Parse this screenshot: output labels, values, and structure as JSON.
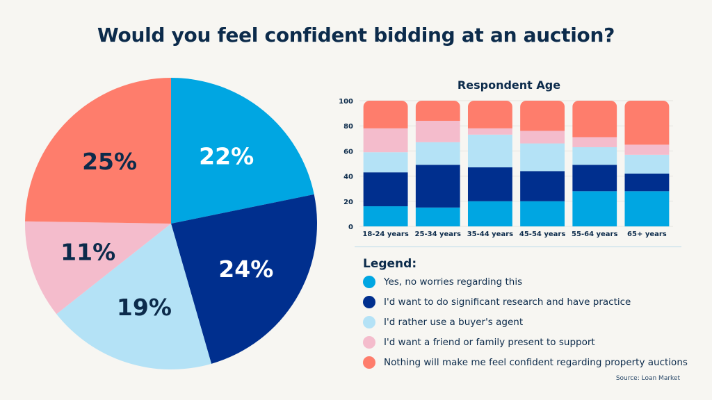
{
  "title": "Would you feel confident bidding at an auction?",
  "colors": {
    "yes": "#00a6e2",
    "research": "#002f8e",
    "agent": "#b4e2f6",
    "friend": "#f4bccc",
    "nothing": "#fe7d6c",
    "text_dark": "#0c2b4b"
  },
  "legend": {
    "title": "Legend:",
    "items": [
      {
        "key": "yes",
        "label": "Yes, no worries regarding this"
      },
      {
        "key": "research",
        "label": "I'd want to do significant research and have practice"
      },
      {
        "key": "agent",
        "label": "I'd rather use a buyer's agent"
      },
      {
        "key": "friend",
        "label": "I'd want a friend or family present to support"
      },
      {
        "key": "nothing",
        "label": "Nothing will make me feel confident regarding property auctions"
      }
    ]
  },
  "source": "Source: Loan Market",
  "chart_data": [
    {
      "type": "pie",
      "title": "Would you feel confident bidding at an auction?",
      "start": "top, clockwise",
      "slices": [
        {
          "key": "yes",
          "label": "Yes, no worries regarding this",
          "value": 22,
          "text": "22%",
          "label_color": "#ffffff"
        },
        {
          "key": "research",
          "label": "I'd want to do significant research and have practice",
          "value": 24,
          "text": "24%",
          "label_color": "#ffffff"
        },
        {
          "key": "agent",
          "label": "I'd rather use a buyer's agent",
          "value": 19,
          "text": "19%",
          "label_color": "#0c2b4b"
        },
        {
          "key": "friend",
          "label": "I'd want a friend or family present to support",
          "value": 11,
          "text": "11%",
          "label_color": "#0c2b4b"
        },
        {
          "key": "nothing",
          "label": "Nothing will make me feel confident regarding property auctions",
          "value": 25,
          "text": "25%",
          "label_color": "#0c2b4b"
        }
      ]
    },
    {
      "type": "bar",
      "stacked": true,
      "title": "Respondent Age",
      "xlabel": "",
      "ylabel": "",
      "ylim": [
        0,
        100
      ],
      "yticks": [
        0,
        20,
        40,
        60,
        80,
        100
      ],
      "grid": true,
      "categories": [
        "18-24 years",
        "25-34 years",
        "35-44 years",
        "45-54 years",
        "55-64 years",
        "65+ years"
      ],
      "series": [
        {
          "key": "yes",
          "name": "Yes, no worries regarding this",
          "values": [
            16,
            15,
            20,
            20,
            28,
            28
          ]
        },
        {
          "key": "research",
          "name": "I'd want to do significant research and have practice",
          "values": [
            27,
            34,
            27,
            24,
            21,
            14
          ]
        },
        {
          "key": "agent",
          "name": "I'd rather use a buyer's agent",
          "values": [
            16,
            18,
            26,
            22,
            14,
            15
          ]
        },
        {
          "key": "friend",
          "name": "I'd want a friend or family present to support",
          "values": [
            19,
            17,
            5,
            10,
            8,
            8
          ]
        },
        {
          "key": "nothing",
          "name": "Nothing will make me feel confident regarding property auctions",
          "values": [
            22,
            16,
            22,
            24,
            29,
            35
          ]
        }
      ]
    }
  ]
}
